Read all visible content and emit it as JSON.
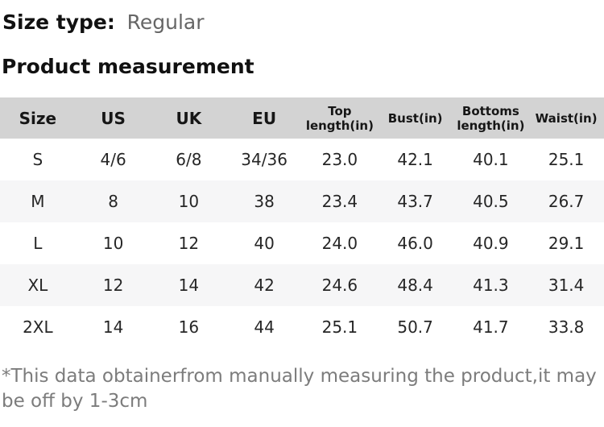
{
  "page": {
    "size_type_label": "Size type:",
    "size_type_value": "Regular",
    "section_title": "Product measurement",
    "footnote": "*This data obtainerfrom manually measuring the product,it may be off by 1-3cm"
  },
  "table": {
    "columns": [
      "Size",
      "US",
      "UK",
      "EU",
      "Top length(in)",
      "Bust(in)",
      "Bottoms length(in)",
      "Waist(in)"
    ],
    "rows": [
      [
        "S",
        "4/6",
        "6/8",
        "34/36",
        "23.0",
        "42.1",
        "40.1",
        "25.1"
      ],
      [
        "M",
        "8",
        "10",
        "38",
        "23.4",
        "43.7",
        "40.5",
        "26.7"
      ],
      [
        "L",
        "10",
        "12",
        "40",
        "24.0",
        "46.0",
        "40.9",
        "29.1"
      ],
      [
        "XL",
        "12",
        "14",
        "42",
        "24.6",
        "48.4",
        "41.3",
        "31.4"
      ],
      [
        "2XL",
        "14",
        "16",
        "44",
        "25.1",
        "50.7",
        "41.7",
        "33.8"
      ]
    ]
  },
  "colors": {
    "header_bg": "#d3d3d3",
    "row_alt_bg": "#f6f6f7",
    "muted": "#666666",
    "footnote": "#7c7c7c"
  }
}
